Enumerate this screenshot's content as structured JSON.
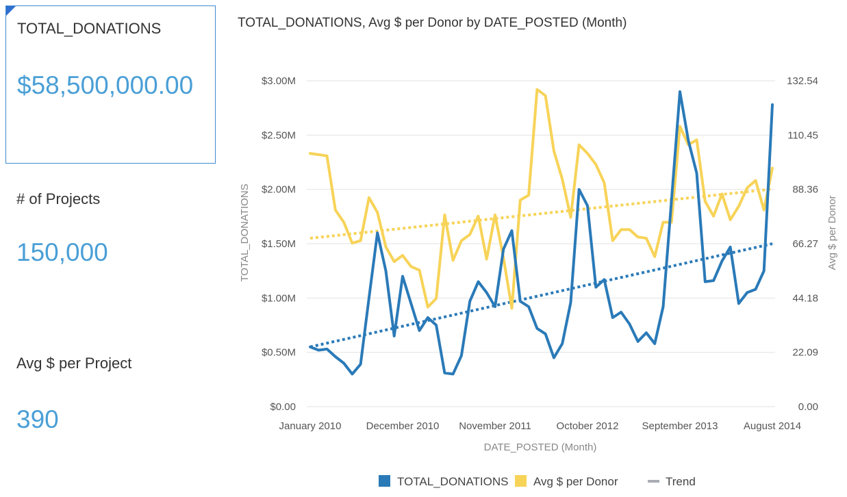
{
  "kpis": {
    "donations": {
      "label": "TOTAL_DONATIONS",
      "value": "$58,500,000.00"
    },
    "projects": {
      "label": "# of Projects",
      "value": "150,000"
    },
    "avg_project": {
      "label": "Avg $ per Project",
      "value": "390"
    }
  },
  "colors": {
    "donations": "#2a7ab8",
    "avg_donor": "#f7d358",
    "trend": "#a9adb3",
    "kpi_value": "#4a9fd6",
    "grid": "#e2e2e2"
  },
  "chart_data": {
    "type": "line",
    "title": "TOTAL_DONATIONS, Avg $ per Donor by DATE_POSTED (Month)",
    "xlabel": "DATE_POSTED (Month)",
    "ylabel": "TOTAL_DONATIONS",
    "y2label": "Avg $ per Donor",
    "x_ticks": [
      "January 2010",
      "December 2010",
      "November 2011",
      "October 2012",
      "September 2013",
      "August 2014"
    ],
    "y_ticks": [
      "$0.00",
      "$0.50M",
      "$1.00M",
      "$1.50M",
      "$2.00M",
      "$2.50M",
      "$3.00M"
    ],
    "y2_ticks": [
      "0.00",
      "22.09",
      "44.18",
      "66.27",
      "88.36",
      "110.45",
      "132.54"
    ],
    "ylim": [
      0,
      3000000
    ],
    "y2lim": [
      0,
      132.54
    ],
    "grid": true,
    "legend_position": "bottom",
    "legend": [
      "TOTAL_DONATIONS",
      "Avg $ per Donor",
      "Trend"
    ],
    "series": [
      {
        "name": "TOTAL_DONATIONS",
        "axis": "left",
        "values": [
          550000,
          520000,
          530000,
          460000,
          400000,
          300000,
          390000,
          1000000,
          1600000,
          1250000,
          650000,
          1200000,
          950000,
          700000,
          820000,
          750000,
          310000,
          300000,
          470000,
          970000,
          1150000,
          1050000,
          920000,
          1450000,
          1620000,
          970000,
          920000,
          720000,
          670000,
          450000,
          580000,
          960000,
          2000000,
          1850000,
          1100000,
          1170000,
          820000,
          870000,
          760000,
          600000,
          680000,
          580000,
          920000,
          1900000,
          2900000,
          2450000,
          2150000,
          1150000,
          1160000,
          1340000,
          1470000,
          950000,
          1050000,
          1080000,
          1250000,
          2780000
        ]
      },
      {
        "name": "Avg $ per Donor",
        "axis": "right",
        "values": [
          103,
          102.5,
          102,
          80,
          75,
          66.5,
          67.5,
          85,
          79,
          65,
          59,
          61.5,
          57,
          55.5,
          40.5,
          44,
          78,
          59.5,
          67.5,
          70,
          77.5,
          60,
          78,
          60.5,
          40,
          84,
          86,
          129,
          126.5,
          104,
          92.5,
          77,
          106.5,
          103,
          98.5,
          91,
          67.5,
          72,
          72,
          69,
          68.5,
          61,
          75,
          75,
          114,
          106.5,
          108.5,
          83.5,
          77.5,
          86.5,
          76,
          81.5,
          89,
          92,
          80,
          97
        ]
      }
    ],
    "trends": [
      {
        "name": "Trend",
        "axis": "left",
        "start": 550000,
        "end": 1500000
      },
      {
        "name": "Trend",
        "axis": "right",
        "start": 68.5,
        "end": 88.5
      }
    ]
  }
}
